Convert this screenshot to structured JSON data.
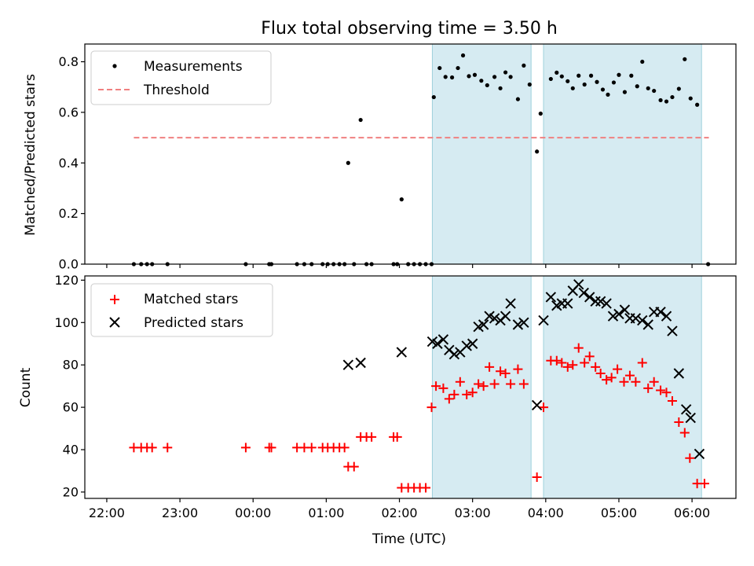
{
  "chart_data": {
    "type": "scatter",
    "title": "Flux total observing time = 3.50 h",
    "xlabel": "Time (UTC)",
    "x_unit": "hours since 22:00 UTC",
    "x_ticks": [
      {
        "v": 0,
        "label": "22:00"
      },
      {
        "v": 1,
        "label": "23:00"
      },
      {
        "v": 2,
        "label": "00:00"
      },
      {
        "v": 3,
        "label": "01:00"
      },
      {
        "v": 4,
        "label": "02:00"
      },
      {
        "v": 5,
        "label": "03:00"
      },
      {
        "v": 6,
        "label": "04:00"
      },
      {
        "v": 7,
        "label": "05:00"
      },
      {
        "v": 8,
        "label": "06:00"
      }
    ],
    "xlim": [
      -0.3,
      8.6
    ],
    "shaded_intervals": [
      [
        4.45,
        5.8
      ],
      [
        5.97,
        8.13
      ]
    ],
    "panels": [
      {
        "id": "top",
        "ylabel": "Matched/Predicted stars",
        "ylim": [
          0,
          0.87
        ],
        "yticks": [
          {
            "v": 0,
            "label": "0.0"
          },
          {
            "v": 0.2,
            "label": "0.2"
          },
          {
            "v": 0.4,
            "label": "0.4"
          },
          {
            "v": 0.6,
            "label": "0.6"
          },
          {
            "v": 0.8,
            "label": "0.8"
          }
        ],
        "legend": [
          {
            "key": "measurements",
            "label": "Measurements"
          },
          {
            "key": "threshold",
            "label": "Threshold"
          }
        ],
        "threshold": {
          "value": 0.5,
          "x_start": 0.37,
          "x_end": 8.23,
          "color": "#f08080"
        },
        "measurements": [
          [
            0.37,
            0
          ],
          [
            0.47,
            0
          ],
          [
            0.55,
            0
          ],
          [
            0.62,
            0
          ],
          [
            0.83,
            0
          ],
          [
            1.9,
            0
          ],
          [
            2.22,
            0
          ],
          [
            2.25,
            0
          ],
          [
            2.6,
            0
          ],
          [
            2.7,
            0
          ],
          [
            2.8,
            0
          ],
          [
            2.95,
            0
          ],
          [
            3.02,
            0
          ],
          [
            3.1,
            0
          ],
          [
            3.18,
            0
          ],
          [
            3.25,
            0
          ],
          [
            3.38,
            0
          ],
          [
            3.55,
            0
          ],
          [
            3.62,
            0
          ],
          [
            3.92,
            0
          ],
          [
            3.97,
            0
          ],
          [
            4.12,
            0
          ],
          [
            4.2,
            0
          ],
          [
            4.28,
            0
          ],
          [
            4.36,
            0
          ],
          [
            4.44,
            0
          ],
          [
            3.3,
            0.4
          ],
          [
            3.47,
            0.57
          ],
          [
            4.03,
            0.256
          ],
          [
            4.47,
            0.66
          ],
          [
            4.55,
            0.775
          ],
          [
            4.63,
            0.74
          ],
          [
            4.72,
            0.738
          ],
          [
            4.8,
            0.775
          ],
          [
            4.87,
            0.825
          ],
          [
            4.95,
            0.743
          ],
          [
            5.03,
            0.748
          ],
          [
            5.12,
            0.725
          ],
          [
            5.2,
            0.707
          ],
          [
            5.3,
            0.74
          ],
          [
            5.38,
            0.695
          ],
          [
            5.45,
            0.758
          ],
          [
            5.52,
            0.74
          ],
          [
            5.62,
            0.652
          ],
          [
            5.7,
            0.785
          ],
          [
            5.78,
            0.71
          ],
          [
            5.88,
            0.445
          ],
          [
            5.93,
            0.595
          ],
          [
            6.07,
            0.732
          ],
          [
            6.15,
            0.757
          ],
          [
            6.22,
            0.742
          ],
          [
            6.3,
            0.723
          ],
          [
            6.37,
            0.695
          ],
          [
            6.45,
            0.745
          ],
          [
            6.53,
            0.71
          ],
          [
            6.62,
            0.745
          ],
          [
            6.7,
            0.72
          ],
          [
            6.78,
            0.69
          ],
          [
            6.85,
            0.67
          ],
          [
            6.93,
            0.718
          ],
          [
            7.0,
            0.748
          ],
          [
            7.08,
            0.68
          ],
          [
            7.17,
            0.745
          ],
          [
            7.25,
            0.703
          ],
          [
            7.32,
            0.8
          ],
          [
            7.4,
            0.695
          ],
          [
            7.48,
            0.685
          ],
          [
            7.57,
            0.648
          ],
          [
            7.65,
            0.643
          ],
          [
            7.73,
            0.66
          ],
          [
            7.82,
            0.693
          ],
          [
            7.9,
            0.81
          ],
          [
            7.98,
            0.655
          ],
          [
            8.07,
            0.63
          ],
          [
            8.22,
            0
          ]
        ]
      },
      {
        "id": "bottom",
        "ylabel": "Count",
        "ylim": [
          17,
          122
        ],
        "yticks": [
          {
            "v": 20,
            "label": "20"
          },
          {
            "v": 40,
            "label": "40"
          },
          {
            "v": 60,
            "label": "60"
          },
          {
            "v": 80,
            "label": "80"
          },
          {
            "v": 100,
            "label": "100"
          },
          {
            "v": 120,
            "label": "120"
          }
        ],
        "legend": [
          {
            "key": "matched",
            "label": "Matched stars"
          },
          {
            "key": "predicted",
            "label": "Predicted stars"
          }
        ],
        "matched": [
          [
            0.37,
            41
          ],
          [
            0.47,
            41
          ],
          [
            0.55,
            41
          ],
          [
            0.62,
            41
          ],
          [
            0.83,
            41
          ],
          [
            1.9,
            41
          ],
          [
            2.22,
            41
          ],
          [
            2.25,
            41
          ],
          [
            2.6,
            41
          ],
          [
            2.7,
            41
          ],
          [
            2.8,
            41
          ],
          [
            2.95,
            41
          ],
          [
            3.02,
            41
          ],
          [
            3.1,
            41
          ],
          [
            3.18,
            41
          ],
          [
            3.25,
            41
          ],
          [
            3.3,
            32
          ],
          [
            3.38,
            32
          ],
          [
            3.47,
            46
          ],
          [
            3.55,
            46
          ],
          [
            3.62,
            46
          ],
          [
            3.92,
            46
          ],
          [
            3.97,
            46
          ],
          [
            4.03,
            22
          ],
          [
            4.12,
            22
          ],
          [
            4.2,
            22
          ],
          [
            4.28,
            22
          ],
          [
            4.36,
            22
          ],
          [
            4.44,
            60
          ],
          [
            4.5,
            70
          ],
          [
            4.6,
            69
          ],
          [
            4.68,
            64
          ],
          [
            4.75,
            66
          ],
          [
            4.83,
            72
          ],
          [
            4.92,
            66
          ],
          [
            5.0,
            67
          ],
          [
            5.08,
            71
          ],
          [
            5.15,
            70
          ],
          [
            5.23,
            79
          ],
          [
            5.3,
            71
          ],
          [
            5.38,
            77
          ],
          [
            5.45,
            76
          ],
          [
            5.52,
            71
          ],
          [
            5.62,
            78
          ],
          [
            5.7,
            71
          ],
          [
            5.88,
            27
          ],
          [
            5.97,
            60
          ],
          [
            6.07,
            82
          ],
          [
            6.15,
            82
          ],
          [
            6.22,
            81
          ],
          [
            6.3,
            79
          ],
          [
            6.37,
            80
          ],
          [
            6.45,
            88
          ],
          [
            6.53,
            81
          ],
          [
            6.6,
            84
          ],
          [
            6.68,
            79
          ],
          [
            6.75,
            76
          ],
          [
            6.83,
            73
          ],
          [
            6.9,
            74
          ],
          [
            6.98,
            78
          ],
          [
            7.07,
            72
          ],
          [
            7.15,
            75
          ],
          [
            7.23,
            72
          ],
          [
            7.32,
            81
          ],
          [
            7.4,
            69
          ],
          [
            7.48,
            72
          ],
          [
            7.57,
            68
          ],
          [
            7.65,
            67
          ],
          [
            7.73,
            63
          ],
          [
            7.82,
            53
          ],
          [
            7.9,
            48
          ],
          [
            7.97,
            36
          ],
          [
            8.07,
            24
          ],
          [
            8.17,
            24
          ]
        ],
        "predicted": [
          [
            3.3,
            80
          ],
          [
            3.47,
            81
          ],
          [
            4.03,
            86
          ],
          [
            4.45,
            91
          ],
          [
            4.52,
            90
          ],
          [
            4.6,
            92
          ],
          [
            4.68,
            87
          ],
          [
            4.75,
            85
          ],
          [
            4.83,
            86
          ],
          [
            4.92,
            89
          ],
          [
            5.0,
            90
          ],
          [
            5.08,
            98
          ],
          [
            5.15,
            99
          ],
          [
            5.23,
            103
          ],
          [
            5.3,
            102
          ],
          [
            5.38,
            101
          ],
          [
            5.45,
            103
          ],
          [
            5.52,
            109
          ],
          [
            5.62,
            99
          ],
          [
            5.7,
            100
          ],
          [
            5.88,
            61
          ],
          [
            5.97,
            101
          ],
          [
            6.07,
            112
          ],
          [
            6.15,
            108
          ],
          [
            6.22,
            109
          ],
          [
            6.3,
            109
          ],
          [
            6.37,
            115
          ],
          [
            6.45,
            118
          ],
          [
            6.52,
            114
          ],
          [
            6.6,
            112
          ],
          [
            6.68,
            110
          ],
          [
            6.75,
            110
          ],
          [
            6.83,
            109
          ],
          [
            6.92,
            103
          ],
          [
            7.0,
            104
          ],
          [
            7.08,
            106
          ],
          [
            7.15,
            102
          ],
          [
            7.23,
            102
          ],
          [
            7.32,
            101
          ],
          [
            7.4,
            99
          ],
          [
            7.48,
            105
          ],
          [
            7.57,
            105
          ],
          [
            7.65,
            103
          ],
          [
            7.73,
            96
          ],
          [
            7.82,
            76
          ],
          [
            7.92,
            59
          ],
          [
            7.98,
            55
          ],
          [
            8.1,
            38
          ]
        ]
      }
    ]
  }
}
